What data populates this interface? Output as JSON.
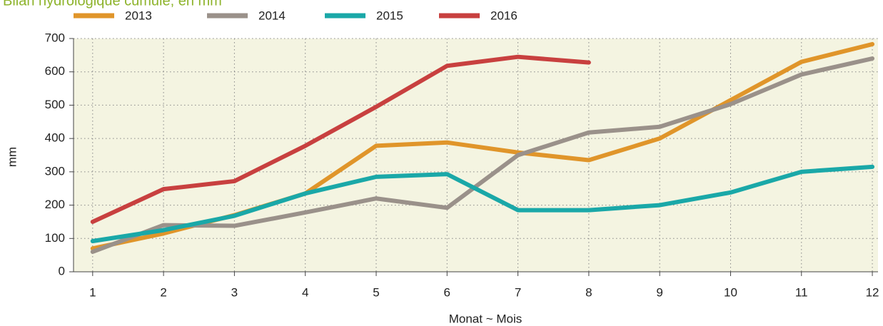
{
  "chart_data": {
    "type": "line",
    "title": "Bilan hydrologique cumulé, en mm",
    "x_label": "Monat ~ Mois",
    "y_label": "mm",
    "x": [
      1,
      2,
      3,
      4,
      5,
      6,
      7,
      8,
      9,
      10,
      11,
      12
    ],
    "xlim": [
      0.73,
      12.08
    ],
    "xticks": [
      1,
      2,
      3,
      4,
      5,
      6,
      7,
      8,
      9,
      10,
      11,
      12
    ],
    "ylim": [
      0,
      700
    ],
    "yticks": [
      0,
      100,
      200,
      300,
      400,
      500,
      600,
      700
    ],
    "grid": true,
    "legend": "top",
    "series": [
      {
        "name": "2013",
        "color": "#e0952a",
        "values": [
          70,
          115,
          170,
          235,
          378,
          388,
          358,
          335,
          400,
          515,
          630,
          683
        ]
      },
      {
        "name": "2014",
        "color": "#9a918a",
        "values": [
          60,
          140,
          138,
          178,
          220,
          192,
          350,
          418,
          435,
          503,
          592,
          640
        ]
      },
      {
        "name": "2015",
        "color": "#1aa8a8",
        "values": [
          92,
          125,
          168,
          235,
          285,
          293,
          185,
          185,
          200,
          238,
          300,
          315
        ]
      },
      {
        "name": "2016",
        "color": "#c8403f",
        "values": [
          150,
          248,
          272,
          378,
          495,
          618,
          645,
          628,
          null,
          null,
          null,
          null
        ]
      }
    ]
  }
}
